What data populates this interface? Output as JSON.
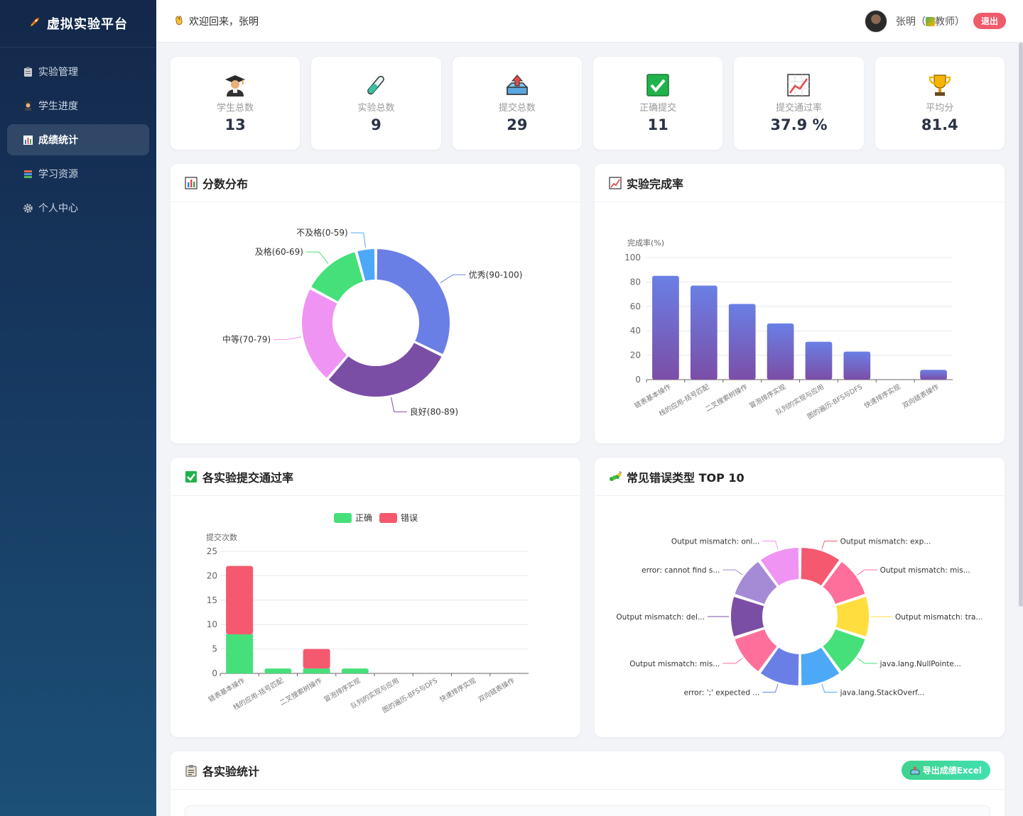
{
  "sidebar": {
    "brand": "虚拟实验平台",
    "items": [
      {
        "label": "实验管理",
        "icon": "clipboard-icon",
        "active": false
      },
      {
        "label": "学生进度",
        "icon": "student-icon",
        "active": false
      },
      {
        "label": "成绩统计",
        "icon": "bar-chart-icon",
        "active": true
      },
      {
        "label": "学习资源",
        "icon": "books-icon",
        "active": false
      },
      {
        "label": "个人中心",
        "icon": "gear-icon",
        "active": false
      }
    ]
  },
  "header": {
    "welcome": "欢迎回来，张明",
    "user_name": "张明（",
    "user_role": "教师）",
    "logout": "退出"
  },
  "stats": [
    {
      "label": "学生总数",
      "value": "13",
      "icon": "student-icon"
    },
    {
      "label": "实验总数",
      "value": "9",
      "icon": "test-tube-icon"
    },
    {
      "label": "提交总数",
      "value": "29",
      "icon": "upload-tray-icon"
    },
    {
      "label": "正确提交",
      "value": "11",
      "icon": "check-mark-icon"
    },
    {
      "label": "提交通过率",
      "value": "37.9 %",
      "icon": "trend-chart-icon"
    },
    {
      "label": "平均分",
      "value": "81.4",
      "icon": "trophy-icon"
    }
  ],
  "panels": {
    "score_dist": "分数分布",
    "completion": "实验完成率",
    "pass_rate": "各实验提交通过率",
    "errors": "常见错误类型 TOP 10",
    "exp_stats": "各实验统计",
    "export": "导出成绩Excel"
  },
  "chart_data": [
    {
      "type": "pie",
      "title": "分数分布",
      "donut": true,
      "labels": [
        "优秀(90-100)",
        "良好(80-89)",
        "中等(70-79)",
        "及格(60-69)",
        "不及格(0-59)"
      ],
      "values": [
        30,
        27,
        20,
        12,
        4
      ],
      "colors": [
        "#6a7fe5",
        "#7b4ea6",
        "#ef94f2",
        "#45e07a",
        "#4da8f7"
      ]
    },
    {
      "type": "bar",
      "title": "实验完成率",
      "ylabel": "完成率(%)",
      "ylim": [
        0,
        100
      ],
      "yticks": [
        0,
        20,
        40,
        60,
        80,
        100
      ],
      "categories": [
        "链表基本操作",
        "栈的应用-括号匹配",
        "二叉搜索树操作",
        "冒泡排序实现",
        "队列的实现与应用",
        "图的遍历-BFS与DFS",
        "快速排序实现",
        "双向链表操作"
      ],
      "values": [
        85,
        77,
        62,
        46,
        31,
        23,
        0,
        8
      ],
      "colors": [
        "#6a7fe5",
        "#7b4ea6"
      ],
      "grid": true
    },
    {
      "type": "bar",
      "stacked": true,
      "title": "各实验提交通过率",
      "ylabel": "提交次数",
      "ylim": [
        0,
        25
      ],
      "yticks": [
        0,
        5,
        10,
        15,
        20,
        25
      ],
      "legend_position": "top-center",
      "categories": [
        "链表基本操作",
        "栈的应用-括号匹配",
        "二叉搜索树操作",
        "冒泡排序实现",
        "队列的实现与应用",
        "图的遍历-BFS与DFS",
        "快速排序实现",
        "双向链表操作"
      ],
      "series": [
        {
          "name": "正确",
          "color": "#45e07a",
          "values": [
            8,
            1,
            1,
            1,
            0,
            0,
            0,
            0
          ]
        },
        {
          "name": "错误",
          "color": "#f5596f",
          "values": [
            14,
            0,
            4,
            0,
            0,
            0,
            0,
            0
          ]
        }
      ],
      "grid": true
    },
    {
      "type": "pie",
      "title": "常见错误类型 TOP 10",
      "donut": true,
      "labels": [
        "Output mismatch: exp...",
        "Output mismatch: mis...",
        "Output mismatch: tra...",
        "java.lang.NullPointe...",
        "java.lang.StackOverf...",
        "error: ';' expected ...",
        "Output mismatch: mis...",
        "Output mismatch: del...",
        "error: cannot find s...",
        "Output mismatch: onl..."
      ],
      "values": [
        1,
        1,
        1,
        1,
        1,
        1,
        1,
        1,
        1,
        1
      ],
      "colors": [
        "#f5596f",
        "#ff6f9b",
        "#ffdd3d",
        "#45e07a",
        "#4da8f7",
        "#6a7fe5",
        "#ff6f9b",
        "#7b4ea6",
        "#a58ad6",
        "#ef94f2"
      ]
    }
  ]
}
